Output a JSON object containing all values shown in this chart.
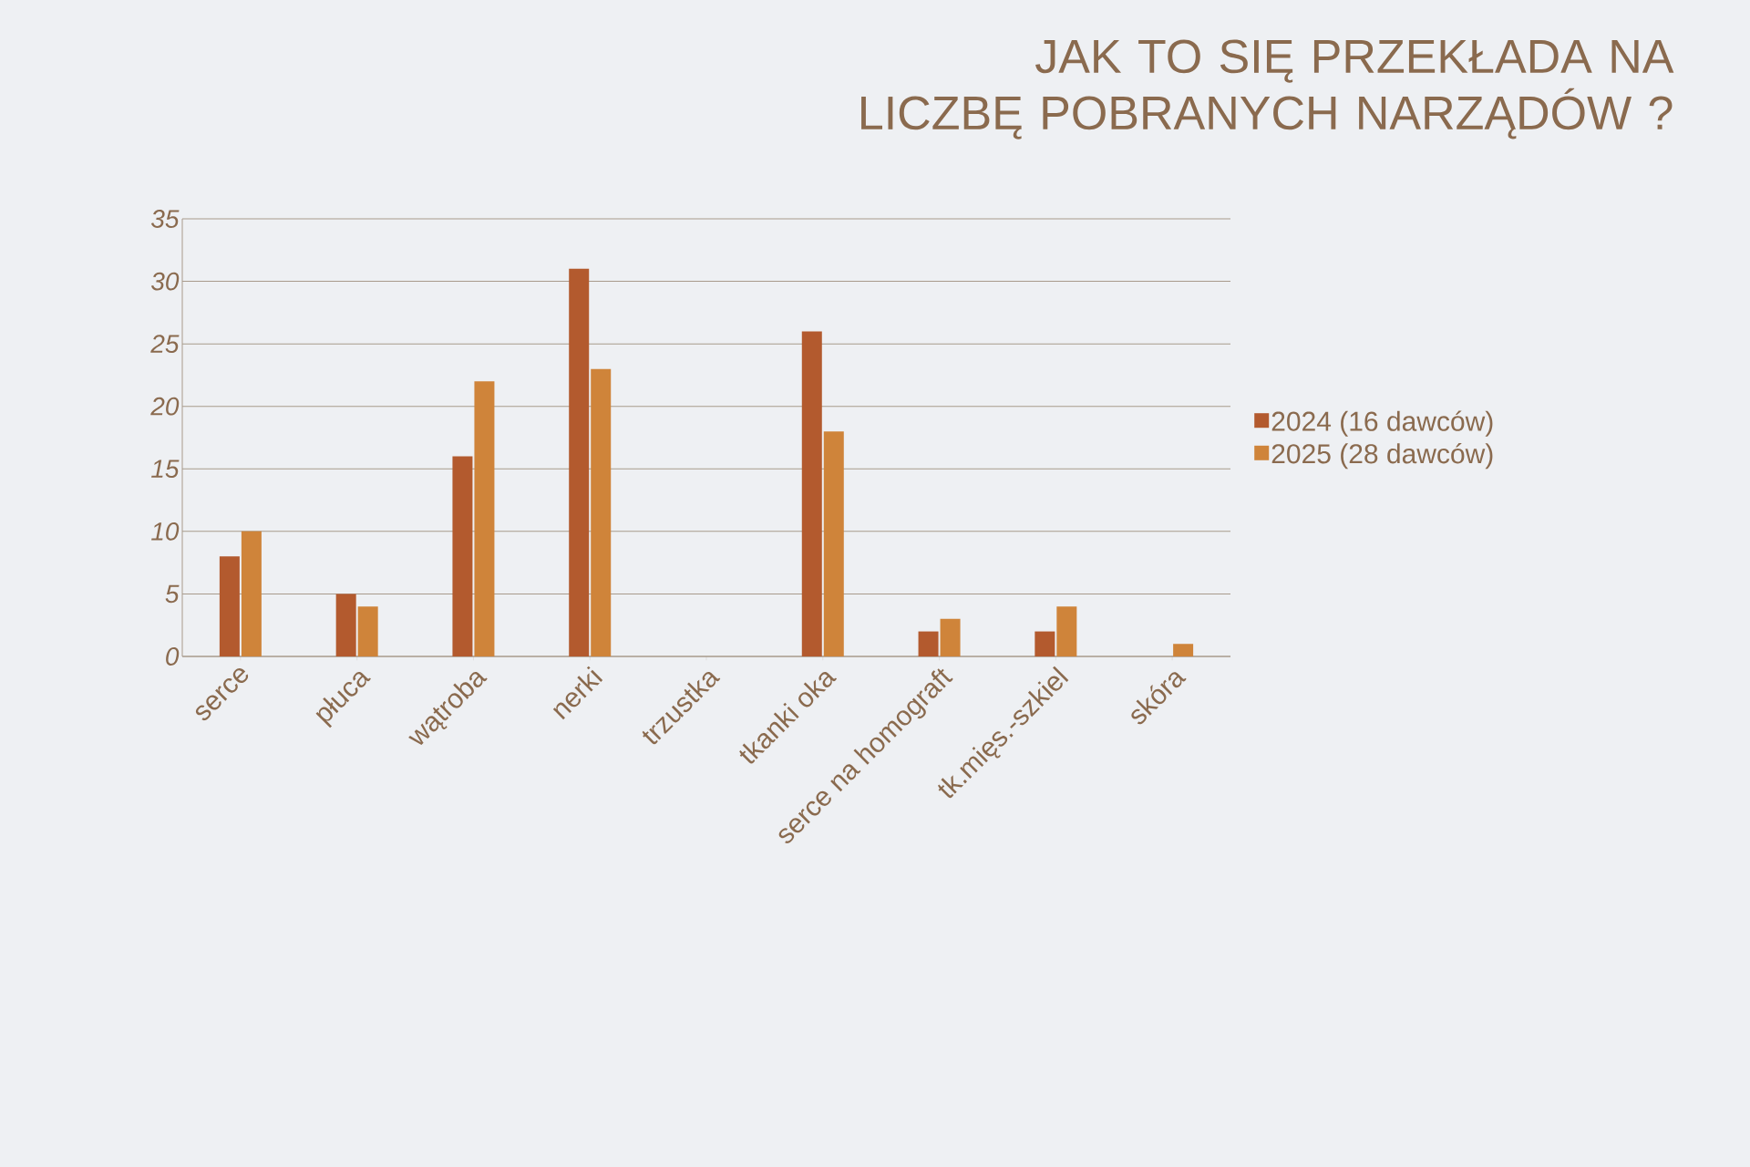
{
  "chart_data": {
    "type": "bar",
    "title": "JAK TO SIĘ PRZEKŁADA NA LICZBĘ POBRANYCH NARZĄDÓW ?",
    "categories": [
      "serce",
      "płuca",
      "wątroba",
      "nerki",
      "trzustka",
      "tkanki oka",
      "serce na homograft",
      "tk.mięs.-szkiel",
      "skóra"
    ],
    "series": [
      {
        "name": "2024 (16 dawców)",
        "color": "#b35a2e",
        "values": [
          8,
          5,
          16,
          31,
          0,
          26,
          2,
          2,
          0
        ]
      },
      {
        "name": "2025 (28 dawców)",
        "color": "#cf843a",
        "values": [
          10,
          4,
          22,
          23,
          0,
          18,
          3,
          4,
          1
        ]
      }
    ],
    "ylim": [
      0,
      35
    ],
    "yticks": [
      0,
      5,
      10,
      15,
      20,
      25,
      30,
      35
    ],
    "grid": "y",
    "legend": "right"
  }
}
